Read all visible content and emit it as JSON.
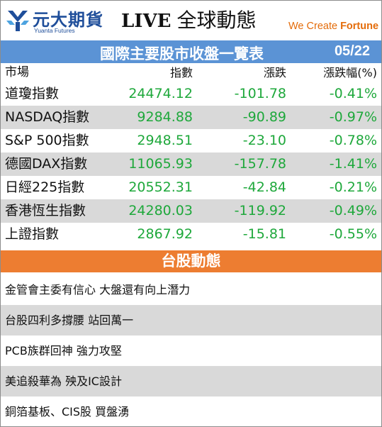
{
  "header": {
    "brand_name": "元大期貨",
    "brand_sub": "Yuanta Futures",
    "live_en": "LIVE",
    "live_zh": "全球動態",
    "slogan_pre": "We Create ",
    "slogan_bold": "Fortune",
    "colors": {
      "brand": "#1f4e9a",
      "slogan": "#e46c0a"
    }
  },
  "title_bar": {
    "title": "國際主要股市收盤一覽表",
    "date": "05/22",
    "color": "#5b93d5"
  },
  "table": {
    "headers": [
      "市場",
      "指數",
      "漲跌",
      "漲跌幅(%)"
    ],
    "rows": [
      {
        "market": "道瓊指數",
        "index": "24474.12",
        "change": "-101.78",
        "pct": "-0.41%"
      },
      {
        "market": "NASDAQ指數",
        "index": "9284.88",
        "change": "-90.89",
        "pct": "-0.97%"
      },
      {
        "market": "S&P 500指數",
        "index": "2948.51",
        "change": "-23.10",
        "pct": "-0.78%"
      },
      {
        "market": "德國DAX指數",
        "index": "11065.93",
        "change": "-157.78",
        "pct": "-1.41%"
      },
      {
        "market": "日經225指數",
        "index": "20552.31",
        "change": "-42.84",
        "pct": "-0.21%"
      },
      {
        "market": "香港恆生指數",
        "index": "24280.03",
        "change": "-119.92",
        "pct": "-0.49%"
      },
      {
        "market": "上證指數",
        "index": "2867.92",
        "change": "-15.81",
        "pct": "-0.55%"
      }
    ],
    "value_color": "#1ea83b",
    "shade_color": "#d9d9d9"
  },
  "section": {
    "title": "台股動態",
    "color": "#ed7d31"
  },
  "news": [
    "金管會主委有信心 大盤還有向上潛力",
    "台股四利多撐腰 站回萬一",
    "PCB族群回神 強力攻堅",
    "美追殺華為 殃及IC設計",
    "銅箔基板、CIS股 買盤湧"
  ],
  "icons": {
    "logo": "yuanta-logo-icon"
  }
}
